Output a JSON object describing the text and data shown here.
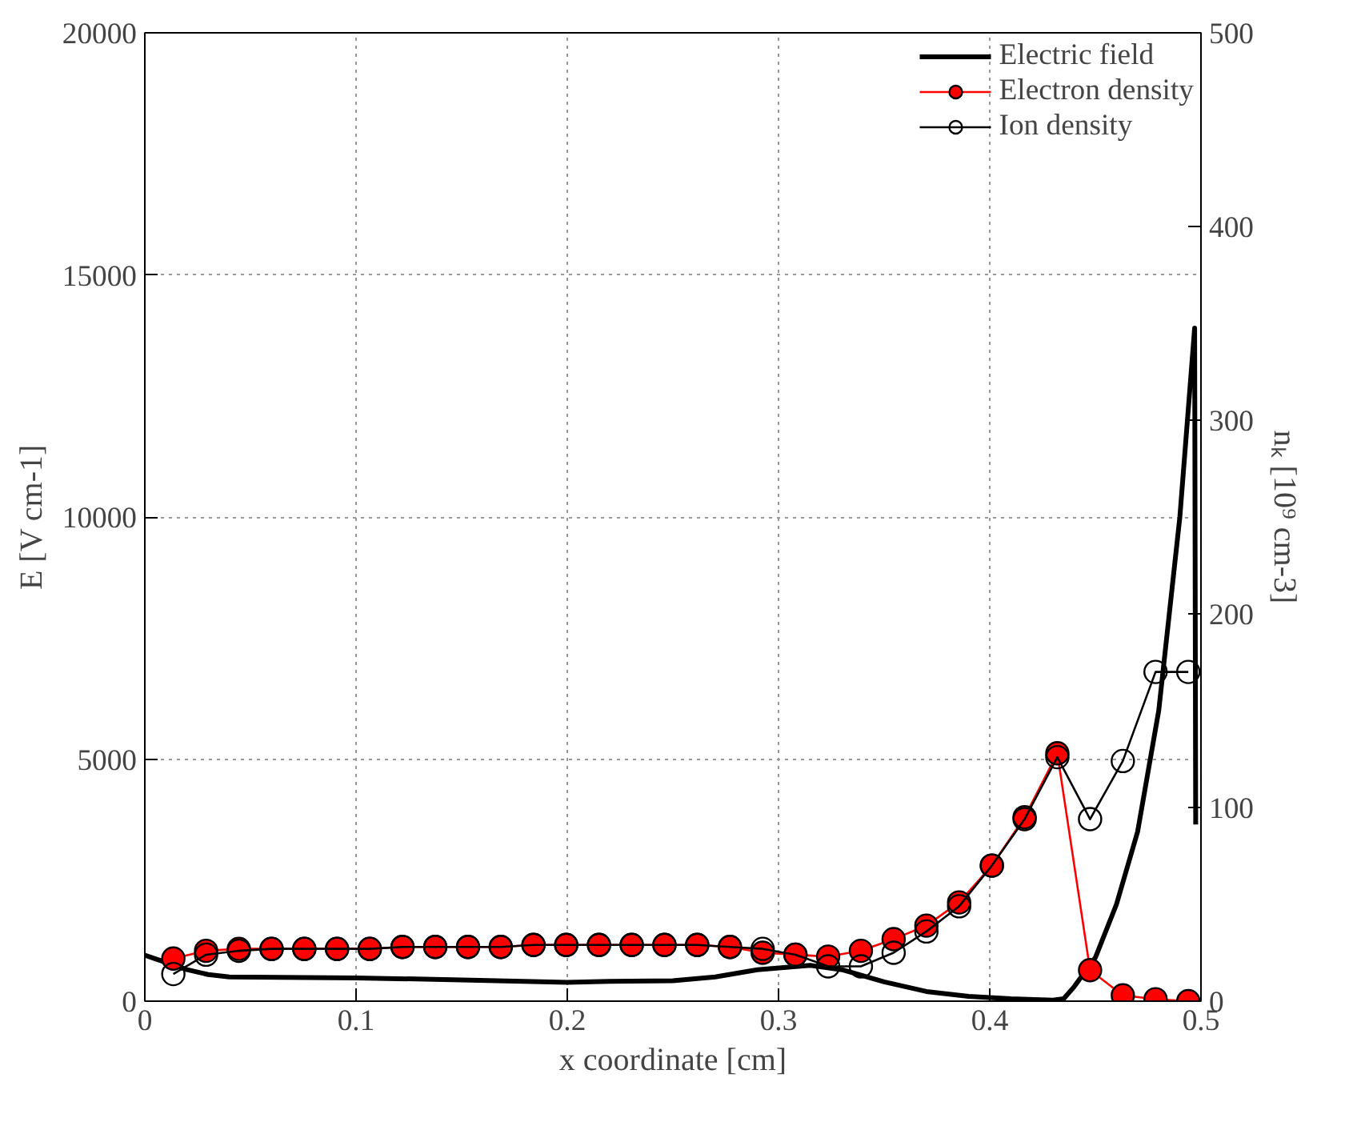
{
  "chart_data": {
    "type": "line",
    "xlabel": "x coordinate [cm]",
    "ylabel": "E [V cm-1]",
    "y2label": "nₖ [10⁹ cm-3]",
    "xlim": [
      0,
      0.5
    ],
    "xticks": [
      0,
      0.1,
      0.2,
      0.3,
      0.4,
      0.5
    ],
    "ylim": [
      0,
      20000
    ],
    "yticks": [
      0,
      5000,
      10000,
      15000,
      20000
    ],
    "y2lim": [
      0,
      500
    ],
    "y2ticks": [
      0,
      100,
      200,
      300,
      400,
      500
    ],
    "grid": true,
    "legend": "top right",
    "series": [
      {
        "name": "Electric field",
        "color": "#000000",
        "marker": "none",
        "x": [
          0,
          0.01,
          0.02,
          0.03,
          0.04,
          0.1,
          0.15,
          0.2,
          0.22,
          0.25,
          0.27,
          0.29,
          0.315,
          0.33,
          0.35,
          0.37,
          0.39,
          0.41,
          0.43,
          0.435,
          0.44,
          0.45,
          0.46,
          0.47,
          0.48,
          0.49,
          0.497,
          0.4975
        ],
        "values": [
          950,
          800,
          650,
          550,
          500,
          480,
          440,
          390,
          410,
          420,
          500,
          650,
          740,
          650,
          400,
          200,
          100,
          50,
          20,
          50,
          300,
          900,
          2000,
          3500,
          6000,
          10000,
          13900,
          3650
        ]
      },
      {
        "name": "Electron density",
        "color": "#ff0000",
        "marker": "circle",
        "axis": "y2",
        "x": [
          0.0135,
          0.029,
          0.0445,
          0.06,
          0.0755,
          0.091,
          0.1065,
          0.122,
          0.1375,
          0.153,
          0.1685,
          0.184,
          0.1995,
          0.215,
          0.2305,
          0.246,
          0.2615,
          0.277,
          0.2925,
          0.308,
          0.3235,
          0.339,
          0.3545,
          0.37,
          0.3855,
          0.401,
          0.4165,
          0.432,
          0.4475,
          0.463,
          0.4785,
          0.494
        ],
        "values": [
          22,
          26,
          27,
          27,
          27,
          27,
          27,
          28,
          28,
          28,
          28,
          29,
          29,
          29,
          29,
          29,
          29,
          28,
          25,
          24,
          23,
          26,
          32,
          39,
          51,
          70,
          95,
          128,
          16,
          3,
          1,
          0
        ]
      },
      {
        "name": "Ion density",
        "color": "#000000",
        "marker": "circle",
        "axis": "y2",
        "x": [
          0.0135,
          0.029,
          0.0445,
          0.06,
          0.0755,
          0.091,
          0.1065,
          0.122,
          0.1375,
          0.153,
          0.1685,
          0.184,
          0.1995,
          0.215,
          0.2305,
          0.246,
          0.2615,
          0.277,
          0.2925,
          0.308,
          0.3235,
          0.339,
          0.3545,
          0.37,
          0.3855,
          0.401,
          0.4165,
          0.432,
          0.4475,
          0.463,
          0.4785,
          0.494
        ],
        "values": [
          14,
          24,
          26,
          27,
          27,
          27,
          27,
          28,
          28,
          28,
          28,
          29,
          29,
          29,
          29,
          29,
          29,
          28,
          27,
          24,
          18,
          18,
          25,
          36,
          49,
          70,
          94,
          126,
          94,
          124,
          170,
          170
        ]
      }
    ]
  }
}
